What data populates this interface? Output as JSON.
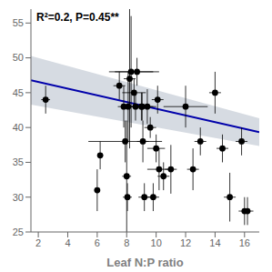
{
  "chart_data": {
    "type": "scatter",
    "xlabel": "Leaf N:P ratio",
    "annotation": "R²=0.2, P=0.45**",
    "xlim": [
      1.5,
      17
    ],
    "ylim": [
      25,
      57
    ],
    "xticks": [
      2,
      4,
      6,
      8,
      10,
      12,
      14,
      16
    ],
    "yticks": [
      25,
      30,
      35,
      40,
      45,
      50,
      55
    ],
    "grid": false,
    "series": [
      {
        "type": "band",
        "color": "#c8cfd8",
        "x": [
          1.5,
          17
        ],
        "low": [
          43.28,
          37.34
        ],
        "high": [
          50.28,
          41.34
        ]
      },
      {
        "type": "line",
        "color": "#0000AA",
        "x": [
          1.5,
          17
        ],
        "values": [
          46.78,
          39.34
        ]
      },
      {
        "type": "scatter",
        "color": "black",
        "x": [
          2.5,
          6.0,
          6.2,
          7.5,
          7.8,
          7.9,
          8.0,
          8.05,
          8.1,
          8.2,
          8.3,
          8.5,
          8.6,
          8.7,
          9.0,
          9.05,
          9.1,
          9.2,
          9.4,
          9.6,
          9.8,
          10.0,
          10.1,
          10.2,
          10.5,
          11.0,
          12.0,
          12.5,
          13.0,
          14.0,
          14.5,
          15.0,
          15.8,
          16.0,
          16.2
        ],
        "values": [
          44,
          31,
          36,
          46,
          43,
          38,
          33,
          30,
          43,
          47,
          48,
          45,
          43,
          48,
          43,
          43,
          38,
          30,
          43,
          40,
          30,
          37,
          44,
          34,
          33,
          34,
          43,
          34,
          38,
          45,
          37,
          30,
          38,
          28,
          28
        ],
        "xerr": [
          0.3,
          0.2,
          0.2,
          0.4,
          0.4,
          2.5,
          0.3,
          0.3,
          0.4,
          0.4,
          1.5,
          0.8,
          0.4,
          1.5,
          1.0,
          0.4,
          0.4,
          0.4,
          0.4,
          0.4,
          0.4,
          0.6,
          0.4,
          0.8,
          0.4,
          0.4,
          1.5,
          0.4,
          0.4,
          0.4,
          0.4,
          0.4,
          0.4,
          0.4,
          0.4
        ],
        "yerr": [
          2.0,
          3.0,
          2.0,
          2.0,
          3.0,
          3.0,
          8.0,
          2.0,
          5.0,
          10.0,
          8.0,
          2.0,
          2.0,
          2.0,
          2.0,
          2.0,
          3.0,
          2.0,
          2.5,
          1.5,
          2.0,
          2.0,
          2.0,
          3.0,
          2.0,
          3.5,
          3.0,
          3.0,
          2.0,
          3.0,
          2.0,
          3.5,
          2.0,
          2.0,
          2.0
        ]
      }
    ]
  }
}
